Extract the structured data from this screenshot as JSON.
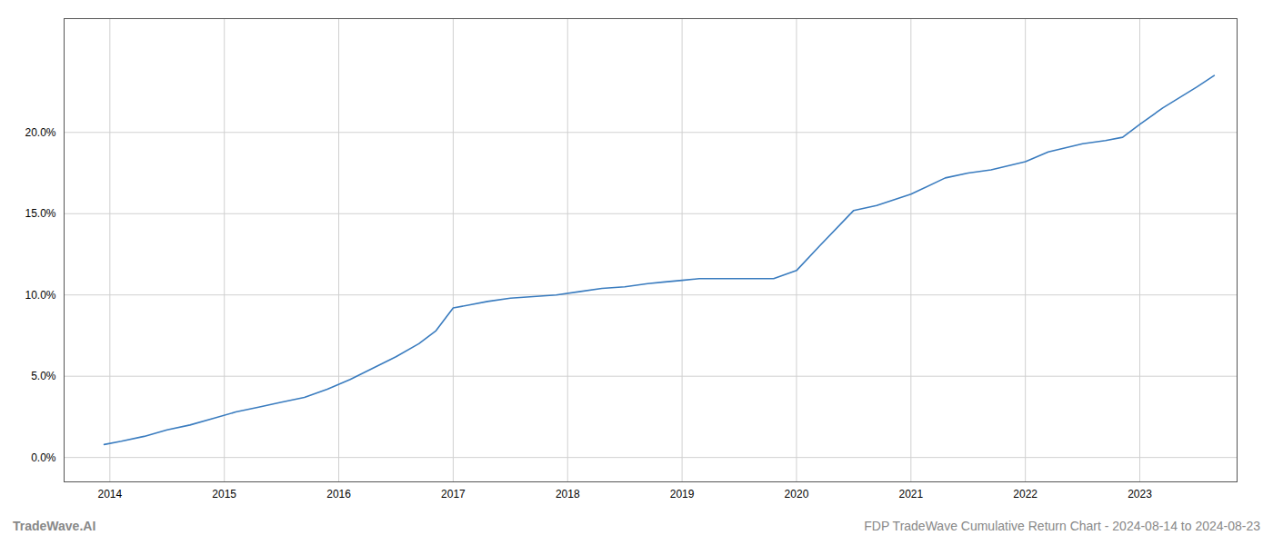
{
  "chart_data": {
    "type": "line",
    "x": [
      2013.95,
      2014.1,
      2014.3,
      2014.5,
      2014.7,
      2014.9,
      2015.1,
      2015.3,
      2015.5,
      2015.7,
      2015.9,
      2016.1,
      2016.3,
      2016.5,
      2016.7,
      2016.85,
      2017.0,
      2017.15,
      2017.3,
      2017.5,
      2017.7,
      2017.9,
      2018.1,
      2018.3,
      2018.5,
      2018.7,
      2018.85,
      2019.0,
      2019.15,
      2019.3,
      2019.5,
      2019.65,
      2019.8,
      2020.0,
      2020.2,
      2020.5,
      2020.7,
      2021.0,
      2021.3,
      2021.5,
      2021.7,
      2022.0,
      2022.2,
      2022.5,
      2022.7,
      2022.85,
      2023.0,
      2023.2,
      2023.5,
      2023.65
    ],
    "values": [
      0.008,
      0.01,
      0.013,
      0.017,
      0.02,
      0.024,
      0.028,
      0.031,
      0.034,
      0.037,
      0.042,
      0.048,
      0.055,
      0.062,
      0.07,
      0.078,
      0.092,
      0.094,
      0.096,
      0.098,
      0.099,
      0.1,
      0.102,
      0.104,
      0.105,
      0.107,
      0.108,
      0.109,
      0.11,
      0.11,
      0.11,
      0.11,
      0.11,
      0.115,
      0.13,
      0.152,
      0.155,
      0.162,
      0.172,
      0.175,
      0.177,
      0.182,
      0.188,
      0.193,
      0.195,
      0.197,
      0.205,
      0.215,
      0.228,
      0.235
    ],
    "color": "#3a7cbf",
    "xlim": [
      2013.6,
      2023.85
    ],
    "xticks": [
      2014,
      2015,
      2016,
      2017,
      2018,
      2019,
      2020,
      2021,
      2022,
      2023
    ],
    "ylim": [
      -0.015,
      0.27
    ],
    "yticks": [
      {
        "value": 0.0,
        "label": "0.0%"
      },
      {
        "value": 0.05,
        "label": "5.0%"
      },
      {
        "value": 0.1,
        "label": "10.0%"
      },
      {
        "value": 0.15,
        "label": "15.0%"
      },
      {
        "value": 0.2,
        "label": "20.0%"
      }
    ],
    "grid": true,
    "annotations": [
      "TradeWave.AI",
      "FDP TradeWave Cumulative Return Chart - 2024-08-14 to 2024-08-23"
    ]
  }
}
